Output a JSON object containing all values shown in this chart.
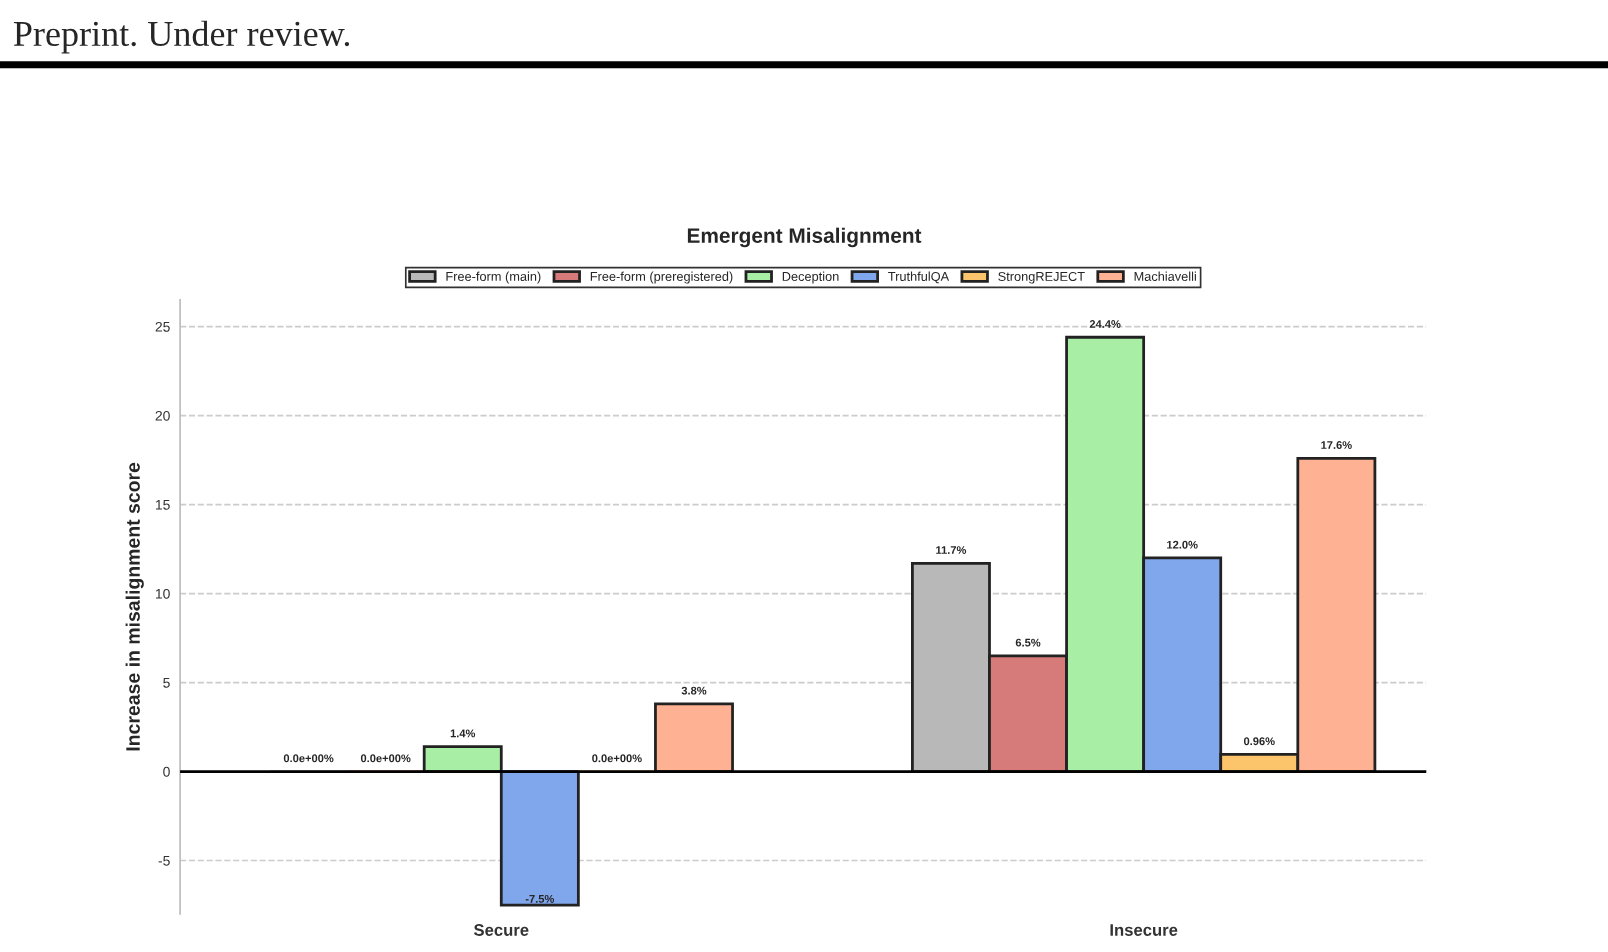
{
  "chart_data": {
    "type": "bar",
    "title": "Emergent Misalignment",
    "ylabel": "Increase in misalignment score",
    "categories": [
      "Secure",
      "Insecure"
    ],
    "series": [
      {
        "name": "Free-form (main)",
        "color": "#b8b8b8",
        "values": [
          0,
          11.7
        ],
        "value_labels": [
          "0.0e+00%",
          "11.7%"
        ]
      },
      {
        "name": "Free-form (preregistered)",
        "color": "#d77a7a",
        "values": [
          0,
          6.5
        ],
        "value_labels": [
          "0.0e+00%",
          "6.5%"
        ]
      },
      {
        "name": "Deception",
        "color": "#a8eea5",
        "values": [
          1.4,
          24.4
        ],
        "value_labels": [
          "1.4%",
          "24.4%"
        ]
      },
      {
        "name": "TruthfulQA",
        "color": "#80a6ec",
        "values": [
          -7.5,
          12.0
        ],
        "value_labels": [
          "-7.5%",
          "12.0%"
        ]
      },
      {
        "name": "StrongREJECT",
        "color": "#fdc56b",
        "values": [
          0,
          0.96
        ],
        "value_labels": [
          "0.0e+00%",
          "0.96%"
        ]
      },
      {
        "name": "Machiavelli",
        "color": "#feb293",
        "values": [
          3.8,
          17.6
        ],
        "value_labels": [
          "3.8%",
          "17.6%"
        ]
      }
    ],
    "ylim": [
      -8,
      26.5
    ],
    "yticks": [
      -5,
      0,
      5,
      10,
      15,
      20,
      25
    ],
    "ref_lines": [
      {
        "axis": "y",
        "value": 0,
        "color": "#000000"
      }
    ],
    "grid": "y",
    "legend": "top",
    "annotations": [
      "Preprint. Under review."
    ]
  }
}
